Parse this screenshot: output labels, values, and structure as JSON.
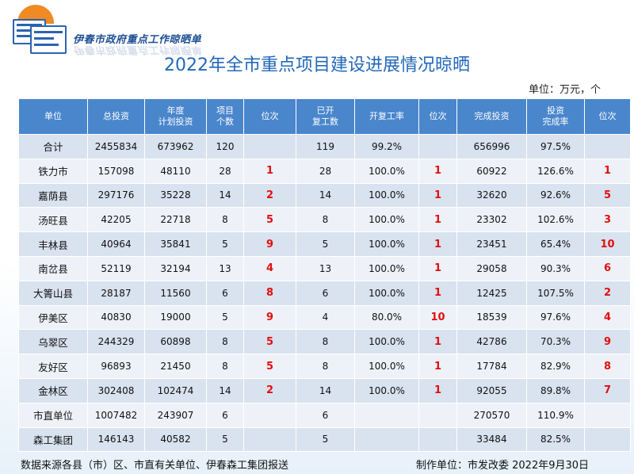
{
  "header": {
    "org_name": "伊春市政府重点工作晾晒单",
    "title": "2022年全市重点项目建设进展情况晾晒",
    "unit": "单位：万元，个"
  },
  "table": {
    "columns": [
      "单位",
      "总投资",
      "年度\n计划投资",
      "项目\n个数",
      "位次",
      "已开\n复工数",
      "开复工率",
      "位次",
      "完成投资",
      "投资\n完成率",
      "位次"
    ],
    "rows": [
      [
        "合计",
        "2455834",
        "673962",
        "120",
        "",
        "119",
        "99.2%",
        "",
        "656996",
        "97.5%",
        ""
      ],
      [
        "铁力市",
        "157098",
        "48110",
        "28",
        "1",
        "28",
        "100.0%",
        "1",
        "60922",
        "126.6%",
        "1"
      ],
      [
        "嘉荫县",
        "297176",
        "35228",
        "14",
        "2",
        "14",
        "100.0%",
        "1",
        "32620",
        "92.6%",
        "5"
      ],
      [
        "汤旺县",
        "42205",
        "22718",
        "8",
        "5",
        "8",
        "100.0%",
        "1",
        "23302",
        "102.6%",
        "3"
      ],
      [
        "丰林县",
        "40964",
        "35841",
        "5",
        "9",
        "5",
        "100.0%",
        "1",
        "23451",
        "65.4%",
        "10"
      ],
      [
        "南岔县",
        "52119",
        "32194",
        "13",
        "4",
        "13",
        "100.0%",
        "1",
        "29058",
        "90.3%",
        "6"
      ],
      [
        "大箐山县",
        "28187",
        "11560",
        "6",
        "8",
        "6",
        "100.0%",
        "1",
        "12425",
        "107.5%",
        "2"
      ],
      [
        "伊美区",
        "40830",
        "19000",
        "5",
        "9",
        "4",
        "80.0%",
        "10",
        "18539",
        "97.6%",
        "4"
      ],
      [
        "乌翠区",
        "244329",
        "60898",
        "8",
        "5",
        "8",
        "100.0%",
        "1",
        "42786",
        "70.3%",
        "9"
      ],
      [
        "友好区",
        "96893",
        "21450",
        "8",
        "5",
        "8",
        "100.0%",
        "1",
        "17784",
        "82.9%",
        "8"
      ],
      [
        "金林区",
        "302408",
        "102474",
        "14",
        "2",
        "14",
        "100.0%",
        "1",
        "92055",
        "89.8%",
        "7"
      ],
      [
        "市直单位",
        "1007482",
        "243907",
        "6",
        "",
        "6",
        "",
        "",
        "270570",
        "110.9%",
        ""
      ],
      [
        "森工集团",
        "146143",
        "40582",
        "5",
        "",
        "5",
        "",
        "",
        "33484",
        "82.5%",
        ""
      ]
    ]
  },
  "footer": {
    "source": "数据来源各县（市）区、市直有关单位、伊春森工集团报送",
    "maker": "制作单位：市发改委   2022年9月30日"
  },
  "colors": {
    "header_bg": "#4a86cc",
    "row_odd": "#d9e2ef",
    "row_even": "#eef2f8",
    "rank_red": "#e20f0f",
    "title_blue": "#2268b8"
  }
}
